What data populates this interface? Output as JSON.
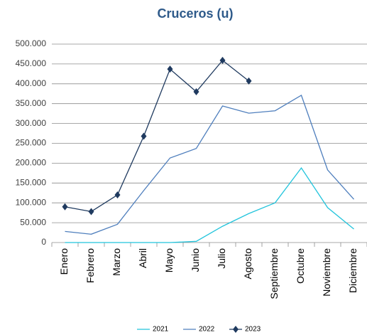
{
  "chart_data": {
    "type": "line",
    "title": "Cruceros (u)",
    "categories": [
      "Enero",
      "Febrero",
      "Marzo",
      "Abril",
      "Mayo",
      "Junio",
      "Julio",
      "Agosto",
      "Septiembre",
      "Octubre",
      "Noviembre",
      "Diciembre"
    ],
    "series": [
      {
        "name": "2021",
        "color": "#22c4dc",
        "values": [
          0,
          0,
          0,
          0,
          0,
          3000,
          41000,
          73000,
          100000,
          188000,
          88000,
          34000
        ]
      },
      {
        "name": "2022",
        "color": "#4f7fbd",
        "values": [
          28000,
          21000,
          46000,
          131000,
          213000,
          237000,
          344000,
          326000,
          332000,
          371000,
          183000,
          109000
        ]
      },
      {
        "name": "2023",
        "color": "#1f3a5f",
        "marker": "diamond",
        "values": [
          90000,
          78000,
          120000,
          268000,
          437000,
          380000,
          459000,
          407000,
          null,
          null,
          null,
          null
        ]
      }
    ],
    "ylim": [
      0,
      500000
    ],
    "yticks": [
      0,
      {
        "value": 50000,
        "label": "50.000"
      },
      {
        "value": 100000,
        "label": "100.000"
      },
      {
        "value": 150000,
        "label": "150.000"
      },
      {
        "value": 200000,
        "label": "200.000"
      },
      {
        "value": 250000,
        "label": "250.000"
      },
      {
        "value": 300000,
        "label": "300.000"
      },
      {
        "value": 350000,
        "label": "350.000"
      },
      {
        "value": 400000,
        "label": "400.000"
      },
      {
        "value": 450000,
        "label": "450.000"
      },
      {
        "value": 500000,
        "label": "500.000"
      }
    ],
    "grid": true,
    "legend": "bottom"
  }
}
